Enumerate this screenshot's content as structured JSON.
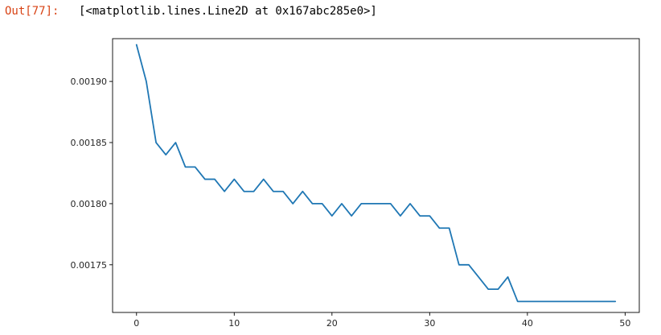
{
  "output": {
    "prompt": "Out[77]:",
    "text": "[<matplotlib.lines.Line2D at 0x167abc285e0>]"
  },
  "chart_data": {
    "type": "line",
    "title": "",
    "xlabel": "",
    "ylabel": "",
    "xlim": [
      -2.45,
      51.45
    ],
    "ylim": [
      0.001711,
      0.001935
    ],
    "xticks": [
      0,
      10,
      20,
      30,
      40,
      50
    ],
    "xtick_labels": [
      "0",
      "10",
      "20",
      "30",
      "40",
      "50"
    ],
    "yticks": [
      0.00175,
      0.0018,
      0.00185,
      0.0019
    ],
    "ytick_labels": [
      "0.00175",
      "0.00180",
      "0.00185",
      "0.00190"
    ],
    "grid": false,
    "line_color": "#1f77b4",
    "x": [
      0,
      1,
      2,
      3,
      4,
      5,
      6,
      7,
      8,
      9,
      10,
      11,
      12,
      13,
      14,
      15,
      16,
      17,
      18,
      19,
      20,
      21,
      22,
      23,
      24,
      25,
      26,
      27,
      28,
      29,
      30,
      31,
      32,
      33,
      34,
      35,
      36,
      37,
      38,
      39,
      40,
      41,
      42,
      43,
      44,
      45,
      46,
      47,
      48,
      49
    ],
    "values": [
      0.00193,
      0.0019,
      0.00185,
      0.00184,
      0.00185,
      0.00183,
      0.00183,
      0.00182,
      0.00182,
      0.00181,
      0.00182,
      0.00181,
      0.00181,
      0.00182,
      0.00181,
      0.00181,
      0.0018,
      0.00181,
      0.0018,
      0.0018,
      0.00179,
      0.0018,
      0.00179,
      0.0018,
      0.0018,
      0.0018,
      0.0018,
      0.00179,
      0.0018,
      0.00179,
      0.00179,
      0.00178,
      0.00178,
      0.00175,
      0.00175,
      0.00174,
      0.00173,
      0.00173,
      0.00174,
      0.00172,
      0.00172,
      0.00172,
      0.00172,
      0.00172,
      0.00172,
      0.00172,
      0.00172,
      0.00172,
      0.00172,
      0.00172
    ]
  }
}
